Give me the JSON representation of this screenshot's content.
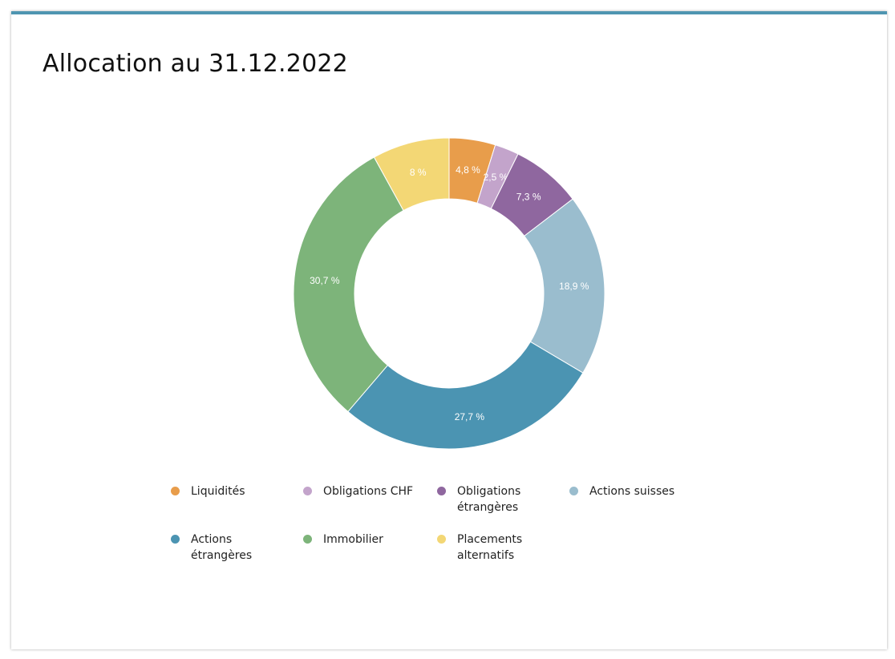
{
  "page": {
    "title": "Allocation au 31.12.2022"
  },
  "chart_data": {
    "type": "pie",
    "donut": true,
    "title": "Allocation au 31.12.2022",
    "legend_position": "bottom",
    "categories": [
      "Liquidités",
      "Obligations CHF",
      "Obligations étrangères",
      "Actions suisses",
      "Actions étrangères",
      "Immobilier",
      "Placements alternatifs"
    ],
    "values": [
      4.8,
      2.5,
      7.3,
      18.9,
      27.7,
      30.7,
      8
    ],
    "labels": [
      "4,8 %",
      "2,5 %",
      "7,3 %",
      "18,9 %",
      "27,7 %",
      "30,7 %",
      "8 %"
    ],
    "colors": [
      "#e89d4b",
      "#c3a4cb",
      "#8f679f",
      "#9abdce",
      "#4b94b2",
      "#7db47a",
      "#f3d775"
    ]
  }
}
